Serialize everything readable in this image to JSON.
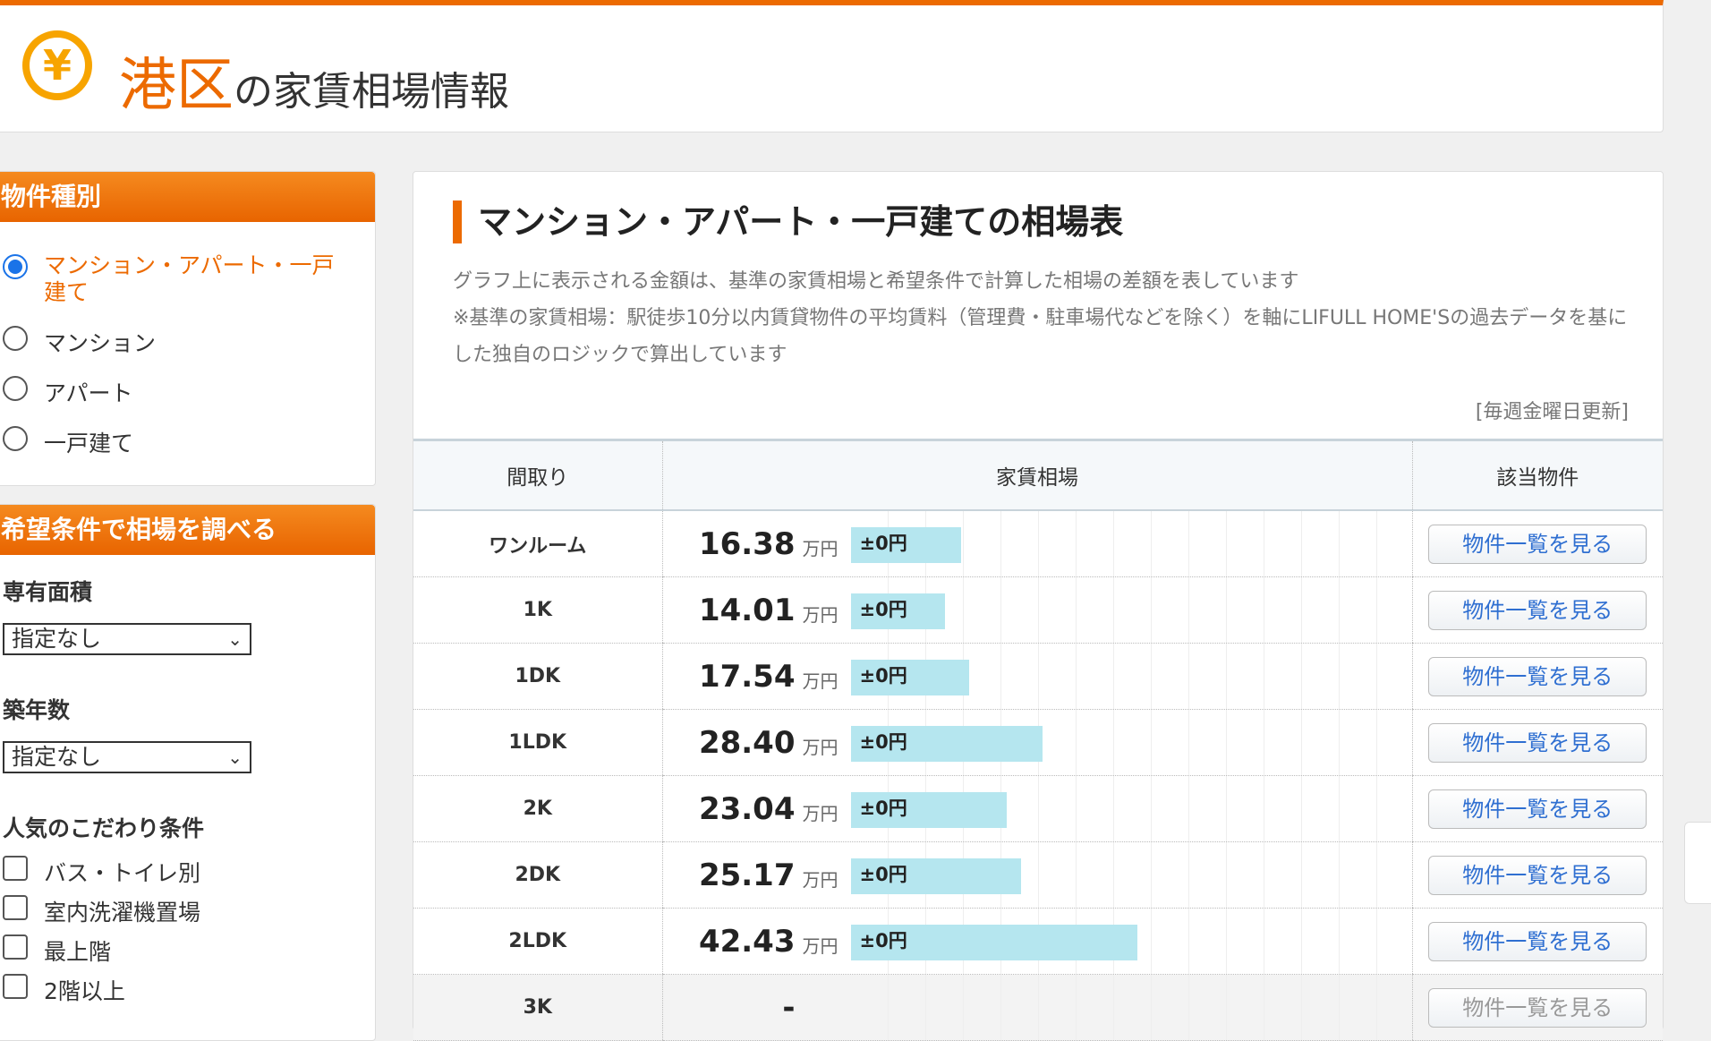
{
  "header": {
    "area": "港区",
    "title_rest": "の家賃相場情報",
    "icon": "yen-coin-icon",
    "icon_glyph": "¥"
  },
  "sidebar": {
    "type_heading": "物件種別",
    "types": [
      {
        "label": "マンション・アパート・一戸建て",
        "selected": true
      },
      {
        "label": "マンション",
        "selected": false
      },
      {
        "label": "アパート",
        "selected": false
      },
      {
        "label": "一戸建て",
        "selected": false
      }
    ],
    "search_heading": "希望条件で相場を調べる",
    "area_label": "専有面積",
    "area_value": "指定なし",
    "age_label": "築年数",
    "age_value": "指定なし",
    "popular_label": "人気のこだわり条件",
    "conditions": [
      "バス・トイレ別",
      "室内洗濯機置場",
      "最上階",
      "2階以上"
    ]
  },
  "main": {
    "title": "マンション・アパート・一戸建ての相場表",
    "desc1": "グラフ上に表示される金額は、基準の家賃相場と希望条件で計算した相場の差額を表しています",
    "desc2": "※基準の家賃相場：駅徒歩10分以内賃貸物件の平均賃料（管理費・駐車場代などを除く）を軸にLIFULL HOME'Sの過去データを基にした独自のロジックで算出しています",
    "updated": "[毎週金曜日更新]",
    "columns": [
      "間取り",
      "家賃相場",
      "該当物件"
    ],
    "unit": "万円",
    "button_label": "物件一覧を見る",
    "rows": [
      {
        "madori": "ワンルーム",
        "rent": "16.38",
        "diff": "±0円"
      },
      {
        "madori": "1K",
        "rent": "14.01",
        "diff": "±0円"
      },
      {
        "madori": "1DK",
        "rent": "17.54",
        "diff": "±0円"
      },
      {
        "madori": "1LDK",
        "rent": "28.40",
        "diff": "±0円"
      },
      {
        "madori": "2K",
        "rent": "23.04",
        "diff": "±0円"
      },
      {
        "madori": "2DK",
        "rent": "25.17",
        "diff": "±0円"
      },
      {
        "madori": "2LDK",
        "rent": "42.43",
        "diff": "±0円"
      }
    ],
    "partial_row": {
      "madori": "3K",
      "rent": "-",
      "button": "物件一覧を見る"
    }
  },
  "colors": {
    "accent": "#ec6a00",
    "bar": "#b5e6ef",
    "link": "#2f6fd1"
  }
}
